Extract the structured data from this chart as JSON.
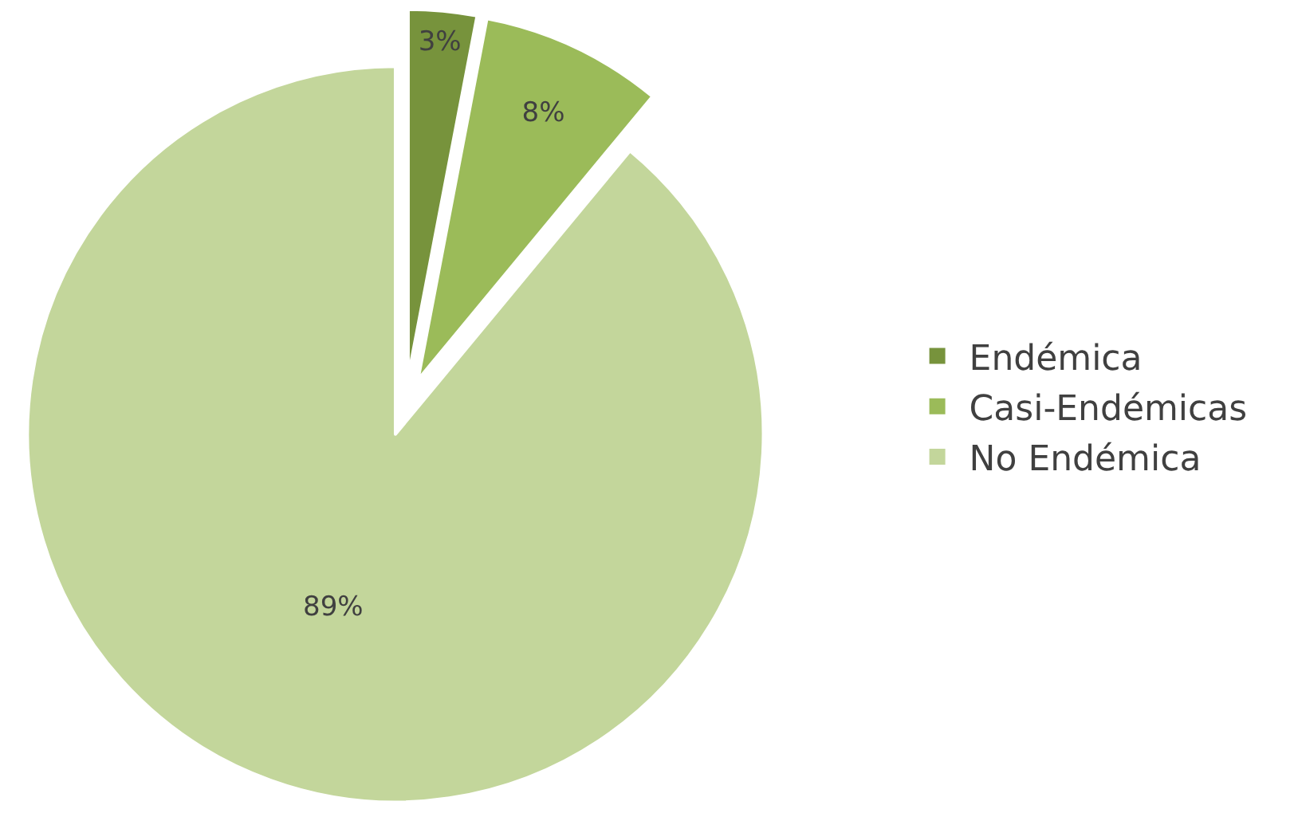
{
  "chart_data": {
    "type": "pie",
    "categories": [
      "Endémica",
      "Casi-Endémicas",
      "No Endémica"
    ],
    "values": [
      3,
      8,
      89
    ],
    "colors": [
      "#77933c",
      "#9bbb59",
      "#c3d69b"
    ],
    "value_labels": [
      "3%",
      "8%",
      "89%"
    ],
    "legend": "right"
  }
}
